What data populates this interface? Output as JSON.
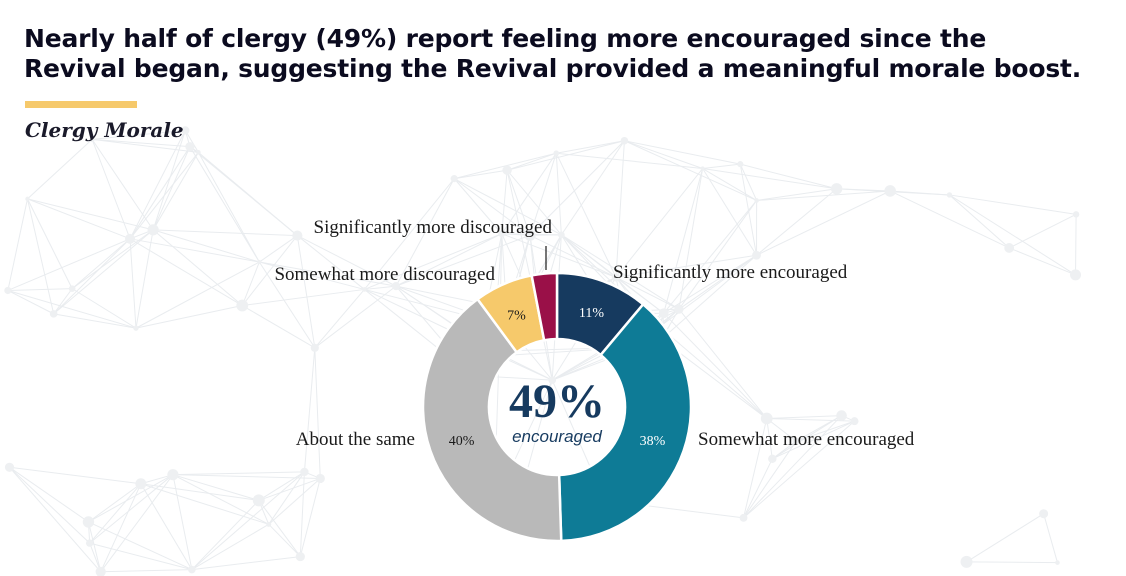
{
  "headline": "Nearly half of clergy (49%) report feeling more encouraged since the Revival began, suggesting the Revival provided a meaningful morale boost.",
  "subtitle": "Clergy Morale",
  "colors": {
    "accent": "#f6c96b",
    "title": "#0b0b1f",
    "center_text": "#163a5f"
  },
  "chart_data": {
    "type": "donut",
    "title": "Clergy Morale",
    "center": {
      "value": "49%",
      "label": "encouraged"
    },
    "slices": [
      {
        "name": "Significantly more encouraged",
        "value": 11,
        "label": "11%",
        "color": "#163a5f",
        "label_color": "#ffffff"
      },
      {
        "name": "Somewhat more encouraged",
        "value": 38,
        "label": "38%",
        "color": "#0e7b96",
        "label_color": "#ffffff"
      },
      {
        "name": "About the same",
        "value": 40,
        "label": "40%",
        "color": "#b9b9b9",
        "label_color": "#1a1a1a"
      },
      {
        "name": "Somewhat more discouraged",
        "value": 7,
        "label": "7%",
        "color": "#f6c96b",
        "label_color": "#1a1a1a"
      },
      {
        "name": "Significantly more discouraged",
        "value": 3,
        "label": "",
        "color": "#9a1048",
        "label_color": "#ffffff"
      }
    ]
  }
}
